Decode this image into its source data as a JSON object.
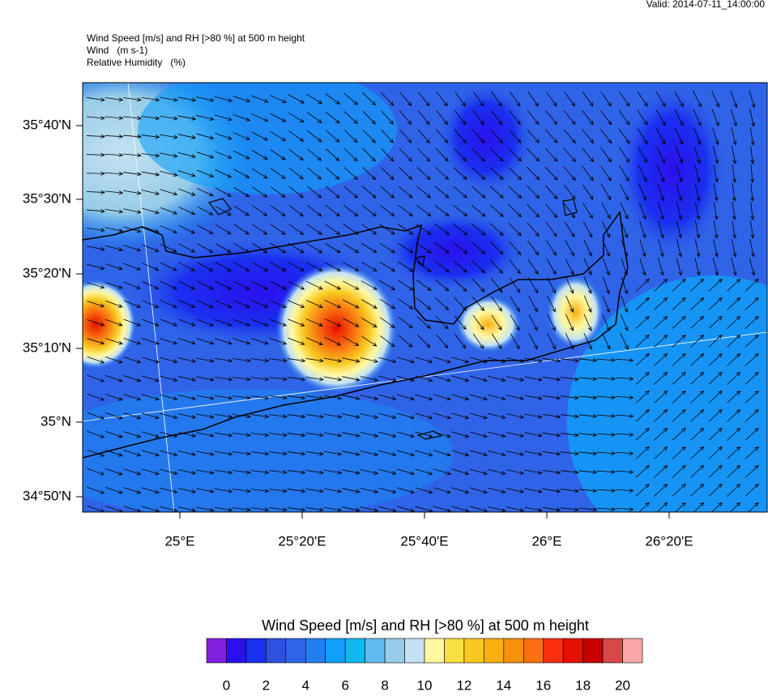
{
  "valid": "Valid: 2014-07-11_14:00:00",
  "header_lines": [
    "Wind Speed [m/s] and RH [>80 %] at 500 m height",
    "Wind   (m s-1)",
    "Relative Humidity   (%)"
  ],
  "map": {
    "lat_labels": [
      "35°40'N",
      "35°30'N",
      "35°20'N",
      "35°10'N",
      "35°N",
      "34°50'N"
    ],
    "lon_labels": [
      "25°E",
      "25°20'E",
      "25°40'E",
      "26°E",
      "26°20'E"
    ]
  },
  "colorbar": {
    "title": "Wind Speed [m/s] and RH [>80 %] at 500 m height",
    "range": [
      -1,
      21
    ],
    "colors": [
      "#8020e0",
      "#2a10ee",
      "#1a30f0",
      "#3050e0",
      "#3064e8",
      "#2080f0",
      "#10a0f8",
      "#10b8f0",
      "#60bcf0",
      "#98cce8",
      "#c4e2f2",
      "#fff8a0",
      "#f8e040",
      "#f8c820",
      "#f8b010",
      "#f89010",
      "#f87010",
      "#f83010",
      "#e81000",
      "#c80000",
      "#d84848",
      "#f8a8a8"
    ],
    "ticks": [
      0,
      2,
      4,
      6,
      8,
      10,
      12,
      14,
      16,
      18,
      20
    ]
  }
}
